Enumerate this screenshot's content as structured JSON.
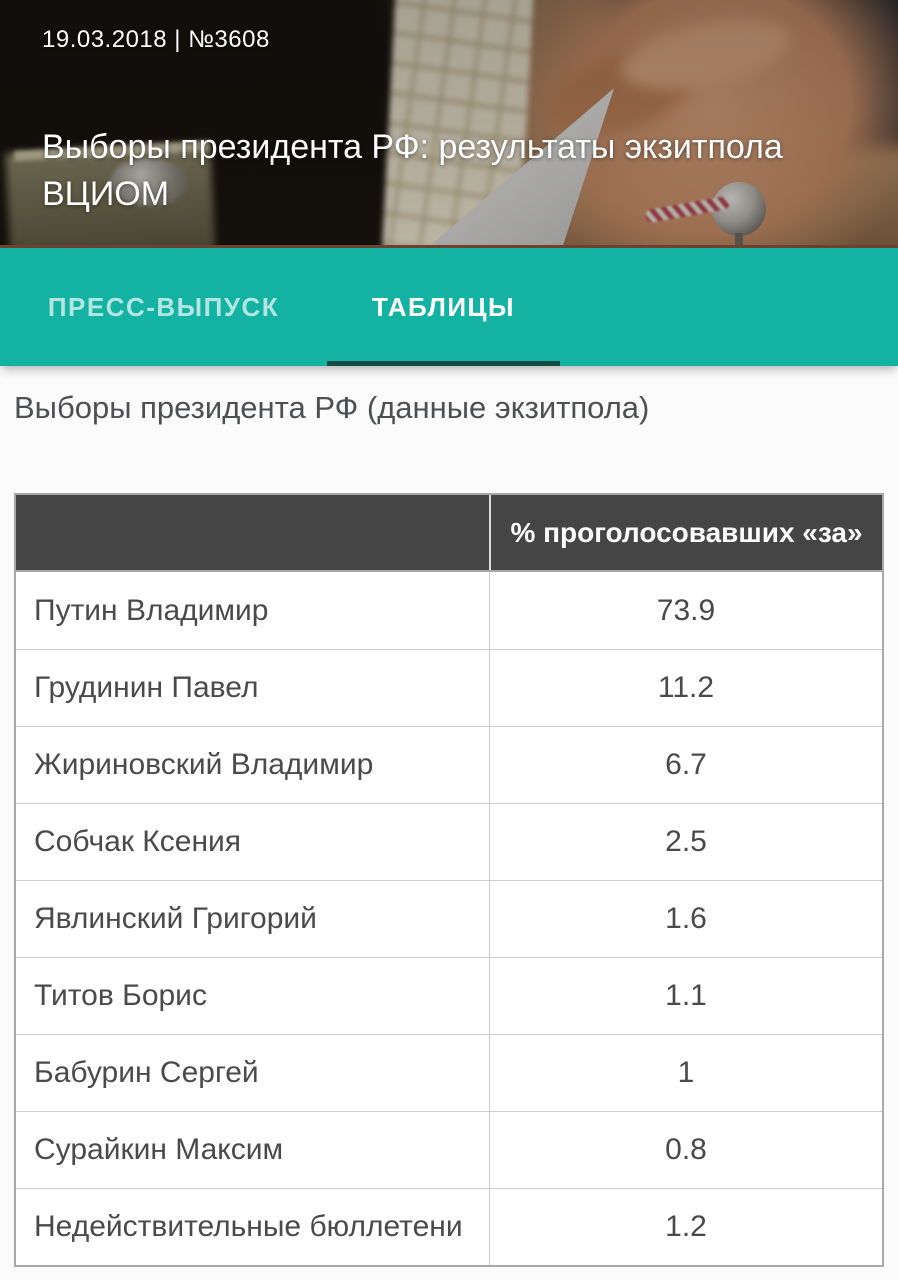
{
  "header": {
    "date_line": "19.03.2018 | №3608",
    "title": "Выборы президента РФ: результаты экзитпола ВЦИОМ"
  },
  "tabs": [
    {
      "label": "ПРЕСС-ВЫПУСК",
      "active": false
    },
    {
      "label": "ТАБЛИЦЫ",
      "active": true
    }
  ],
  "section": {
    "subtitle": "Выборы президента РФ (данные экзитпола)"
  },
  "table": {
    "value_header": "% проголосовавших «за»",
    "rows": [
      {
        "name": "Путин Владимир",
        "value": "73.9"
      },
      {
        "name": "Грудинин Павел",
        "value": "11.2"
      },
      {
        "name": "Жириновский Владимир",
        "value": "6.7"
      },
      {
        "name": "Собчак Ксения",
        "value": "2.5"
      },
      {
        "name": "Явлинский Григорий",
        "value": "1.6"
      },
      {
        "name": "Титов Борис",
        "value": "1.1"
      },
      {
        "name": "Бабурин Сергей",
        "value": "1"
      },
      {
        "name": "Сурайкин Максим",
        "value": "0.8"
      },
      {
        "name": "Недействительные бюллетени",
        "value": "1.2"
      }
    ]
  },
  "colors": {
    "accent_teal": "#13b2a3",
    "active_tab_underline": "#134c44",
    "table_header_bg": "#454545",
    "body_text": "#4a4a4a"
  }
}
